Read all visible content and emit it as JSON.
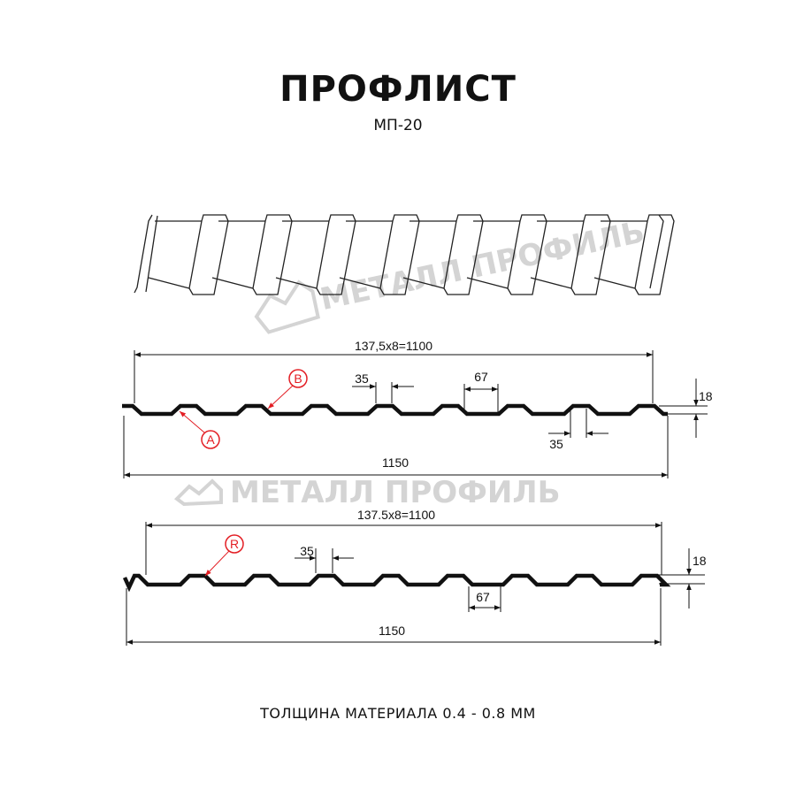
{
  "header": {
    "title": "ПРОФЛИСТ",
    "subtitle": "МП-20"
  },
  "watermark": {
    "text": "МЕТАЛЛ ПРОФИЛЬ"
  },
  "profile_a": {
    "useful_width": "137,5x8=1100",
    "total_width": "1150",
    "rib_top": "35",
    "rib_bottom": "35",
    "valley": "67",
    "height": "18",
    "marker_a": "A",
    "marker_b": "B"
  },
  "profile_b": {
    "useful_width": "137.5x8=1100",
    "total_width": "1150",
    "rib_top": "35",
    "valley": "67",
    "height": "18",
    "marker_r": "R"
  },
  "footer": {
    "text": "ТОЛЩИНА МАТЕРИАЛА 0.4 - 0.8 ММ"
  },
  "colors": {
    "line": "#111111",
    "marker": "#e31e24",
    "watermark": "#d4d4d4"
  }
}
